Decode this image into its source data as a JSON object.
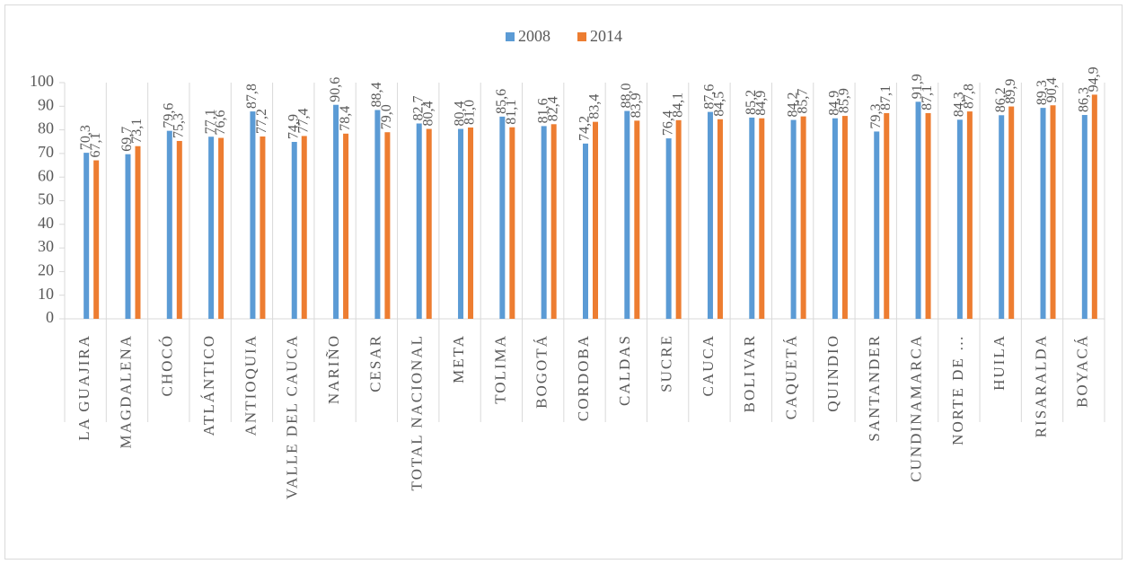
{
  "chart_data": {
    "type": "bar",
    "categories": [
      "LA GUAJIRA",
      "MAGDALENA",
      "CHOCÓ",
      "ATLÁNTICO",
      "ANTIOQUIA",
      "VALLE DEL CAUCA",
      "NARIÑO",
      "CESAR",
      "TOTAL NACIONAL",
      "META",
      "TOLIMA",
      "BOGOTÁ",
      "CORDOBA",
      "CALDAS",
      "SUCRE",
      "CAUCA",
      "BOLIVAR",
      "CAQUETÁ",
      "QUINDIO",
      "SANTANDER",
      "CUNDINAMARCA",
      "NORTE DE …",
      "HUILA",
      "RISARALDA",
      "BOYACÁ"
    ],
    "series": [
      {
        "name": "2008",
        "color": "#5b9bd5",
        "values": [
          70.3,
          69.7,
          79.6,
          77.1,
          87.8,
          74.9,
          90.6,
          88.4,
          82.7,
          80.4,
          85.6,
          81.6,
          74.2,
          88.0,
          76.4,
          87.6,
          85.2,
          84.2,
          84.9,
          79.3,
          91.9,
          84.3,
          86.2,
          89.3,
          86.3
        ],
        "value_labels": [
          "70,3",
          "69,7",
          "79,6",
          "77,1",
          "87,8",
          "74,9",
          "90,6",
          "88,4",
          "82,7",
          "80,4",
          "85,6",
          "81,6",
          "74,2",
          "88,0",
          "76,4",
          "87,6",
          "85,2",
          "84,2",
          "84,9",
          "79,3",
          "91,9",
          "84,3",
          "86,2",
          "89,3",
          "86,3"
        ]
      },
      {
        "name": "2014",
        "color": "#ed7d31",
        "values": [
          67.1,
          73.1,
          75.3,
          76.6,
          77.2,
          77.4,
          78.4,
          79.0,
          80.4,
          81.0,
          81.1,
          82.4,
          83.4,
          83.9,
          84.1,
          84.5,
          84.9,
          85.7,
          85.9,
          87.1,
          87.1,
          87.8,
          89.9,
          90.4,
          94.9
        ],
        "value_labels": [
          "67,1",
          "73,1",
          "75,3",
          "76,6",
          "77,2",
          "77,4",
          "78,4",
          "79,0",
          "80,4",
          "81,0",
          "81,1",
          "82,4",
          "83,4",
          "83,9",
          "84,1",
          "84,5",
          "84,9",
          "85,7",
          "85,9",
          "87,1",
          "87,1",
          "87,8",
          "89,9",
          "90,4",
          "94,9"
        ]
      }
    ],
    "ylim": [
      0,
      100
    ],
    "yticks": [
      0,
      10,
      20,
      30,
      40,
      50,
      60,
      70,
      80,
      90,
      100
    ],
    "legend": "top"
  }
}
